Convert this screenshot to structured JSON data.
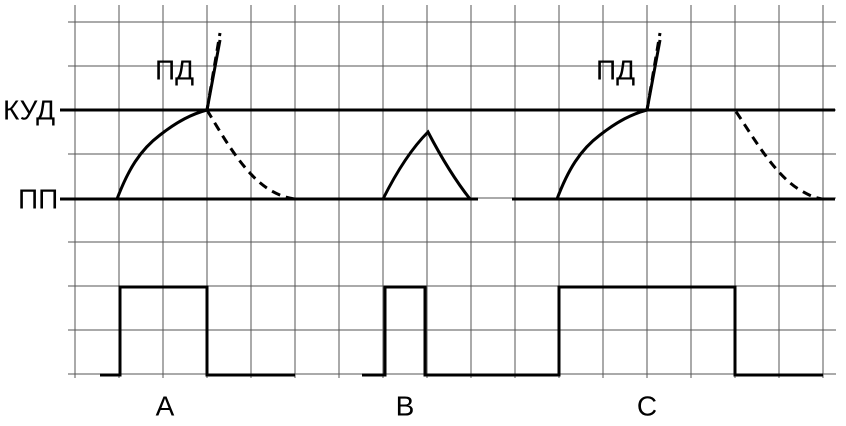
{
  "levels": {
    "threshold": "КУД",
    "resting": "ПП"
  },
  "panels": [
    {
      "label": "A",
      "spike": "ПД"
    },
    {
      "label": "B"
    },
    {
      "label": "C",
      "spike": "ПД"
    }
  ]
}
